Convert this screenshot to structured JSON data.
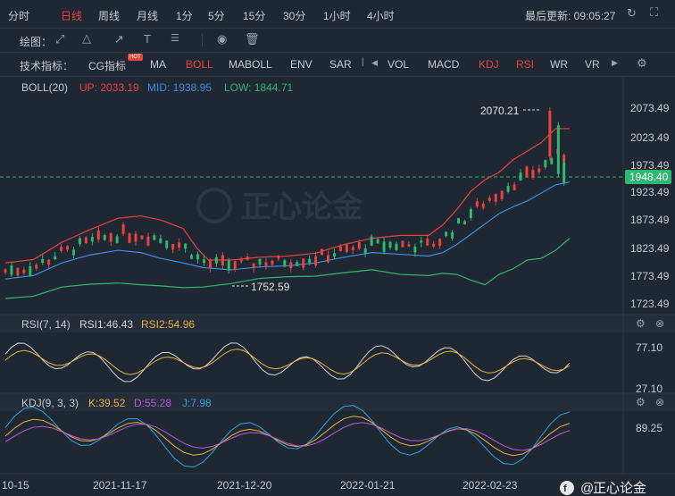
{
  "timeframes": [
    "分时",
    "日线",
    "周线",
    "月线",
    "1分",
    "5分",
    "15分",
    "30分",
    "1小时",
    "4小时"
  ],
  "active_timeframe": "日线",
  "last_update": "最后更新: 09:05:27",
  "draw_label": "绘图：",
  "indicator_label": "技术指标：",
  "indicators": [
    "CG指标",
    "MA",
    "BOLL",
    "MABOLL",
    "ENV",
    "SAR",
    "VOL",
    "MACD",
    "KDJ",
    "RSI",
    "WR",
    "VR"
  ],
  "active_indicators": [
    "BOLL",
    "KDJ",
    "RSI"
  ],
  "hot_badge": "HOT",
  "watermark": "正心论金",
  "colors": {
    "up": "#e8433f",
    "down": "#2eb872",
    "mid": "#3a8ee6",
    "low": "#2eb872",
    "rsi1": "#d8d8d8",
    "rsi2": "#e6b43a",
    "k": "#e6b43a",
    "d": "#b85cd6",
    "j": "#2aa6e6",
    "accent": "#e8433f"
  },
  "chart_data": [
    {
      "type": "candlestick",
      "title": "BOLL(20)",
      "legend": [
        {
          "label": "UP: 2033.19",
          "color": "#e8433f"
        },
        {
          "label": "MID: 1938.95",
          "color": "#3a8ee6"
        },
        {
          "label": "LOW: 1844.71",
          "color": "#2eb872"
        }
      ],
      "y_ticks": [
        "2073.49",
        "2023.49",
        "1973.49",
        "1923.49",
        "1873.49",
        "1823.49",
        "1773.49",
        "1723.49"
      ],
      "ylim": [
        1710,
        2090
      ],
      "current_price": "1948.40",
      "annotations": [
        {
          "text": "2070.21",
          "value": 2070.21
        },
        {
          "text": "1752.59",
          "value": 1752.59
        }
      ],
      "x_ticks": [
        "10-15",
        "2021-11-17",
        "2021-12-20",
        "2022-01-21",
        "2022-02-23"
      ],
      "bands": {
        "upper": [
          [
            0,
            1800
          ],
          [
            10,
            1806
          ],
          [
            20,
            1836
          ],
          [
            30,
            1858
          ],
          [
            40,
            1878
          ],
          [
            48,
            1882
          ],
          [
            55,
            1875
          ],
          [
            63,
            1860
          ],
          [
            68,
            1825
          ],
          [
            72,
            1805
          ],
          [
            80,
            1805
          ],
          [
            90,
            1810
          ],
          [
            100,
            1812
          ],
          [
            110,
            1817
          ],
          [
            120,
            1832
          ],
          [
            130,
            1843
          ],
          [
            140,
            1848
          ],
          [
            150,
            1848
          ],
          [
            155,
            1866
          ],
          [
            160,
            1893
          ],
          [
            165,
            1925
          ],
          [
            170,
            1945
          ],
          [
            175,
            1958
          ],
          [
            180,
            1980
          ],
          [
            185,
            1995
          ],
          [
            190,
            2010
          ],
          [
            195,
            2034
          ],
          [
            200,
            2034
          ]
        ],
        "mid": [
          [
            0,
            1772
          ],
          [
            10,
            1778
          ],
          [
            20,
            1800
          ],
          [
            30,
            1814
          ],
          [
            40,
            1822
          ],
          [
            48,
            1818
          ],
          [
            55,
            1808
          ],
          [
            63,
            1800
          ],
          [
            70,
            1792
          ],
          [
            80,
            1788
          ],
          [
            90,
            1793
          ],
          [
            100,
            1795
          ],
          [
            110,
            1800
          ],
          [
            120,
            1810
          ],
          [
            130,
            1818
          ],
          [
            140,
            1815
          ],
          [
            150,
            1812
          ],
          [
            155,
            1818
          ],
          [
            160,
            1832
          ],
          [
            165,
            1850
          ],
          [
            170,
            1868
          ],
          [
            175,
            1886
          ],
          [
            180,
            1898
          ],
          [
            185,
            1908
          ],
          [
            190,
            1922
          ],
          [
            195,
            1936
          ],
          [
            200,
            1941
          ]
        ],
        "lower": [
          [
            0,
            1738
          ],
          [
            10,
            1742
          ],
          [
            20,
            1758
          ],
          [
            30,
            1763
          ],
          [
            40,
            1765
          ],
          [
            48,
            1762
          ],
          [
            55,
            1760
          ],
          [
            63,
            1757
          ],
          [
            70,
            1758
          ],
          [
            80,
            1764
          ],
          [
            90,
            1773
          ],
          [
            100,
            1776
          ],
          [
            110,
            1777
          ],
          [
            120,
            1783
          ],
          [
            130,
            1788
          ],
          [
            140,
            1780
          ],
          [
            150,
            1778
          ],
          [
            155,
            1782
          ],
          [
            160,
            1780
          ],
          [
            165,
            1770
          ],
          [
            170,
            1762
          ],
          [
            175,
            1780
          ],
          [
            180,
            1790
          ],
          [
            185,
            1805
          ],
          [
            190,
            1808
          ],
          [
            195,
            1822
          ],
          [
            200,
            1843
          ]
        ]
      }
    },
    {
      "type": "line",
      "title": "RSI(7, 14)",
      "series": [
        {
          "name": "RSI1:46.43",
          "color": "#d8d8d8"
        },
        {
          "name": "RSI2:54.96",
          "color": "#e6b43a"
        }
      ],
      "y_ticks": [
        "77.10",
        "27.10"
      ]
    },
    {
      "type": "line",
      "title": "KDJ(9, 3, 3)",
      "series": [
        {
          "name": "K:39.52",
          "color": "#e6b43a"
        },
        {
          "name": "D:55.28",
          "color": "#b85cd6"
        },
        {
          "name": "J:7.98",
          "color": "#2aa6e6"
        }
      ],
      "y_ticks": [
        "89.25"
      ]
    }
  ]
}
